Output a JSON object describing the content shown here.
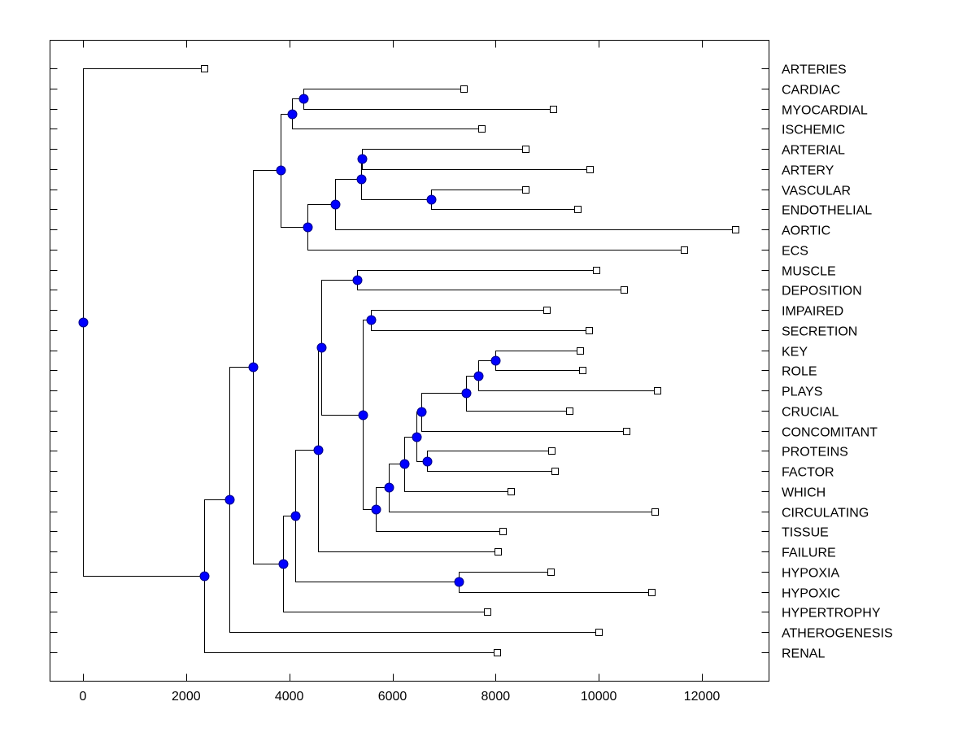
{
  "chart_data": {
    "type": "dendrogram",
    "title": "",
    "xlabel": "",
    "ylabel": "",
    "xlim": [
      -650,
      13300
    ],
    "xticks": [
      0,
      2000,
      4000,
      6000,
      8000,
      10000,
      12000
    ],
    "xtick_labels": [
      "0",
      "2000",
      "4000",
      "6000",
      "8000",
      "10000",
      "12000"
    ],
    "grid": false,
    "node_color": "#0000FF",
    "leaf_marker": "open-square",
    "leaves": [
      {
        "label": "ARTERIES",
        "value": 2350
      },
      {
        "label": "CARDIAC",
        "value": 7375
      },
      {
        "label": "MYOCARDIAL",
        "value": 9110
      },
      {
        "label": "ISCHEMIC",
        "value": 7720
      },
      {
        "label": "ARTERIAL",
        "value": 8575
      },
      {
        "label": "ARTERY",
        "value": 9830
      },
      {
        "label": "VASCULAR",
        "value": 8575
      },
      {
        "label": "ENDOTHELIAL",
        "value": 9580
      },
      {
        "label": "AORTIC",
        "value": 12640
      },
      {
        "label": "ECS",
        "value": 11660
      },
      {
        "label": "MUSCLE",
        "value": 9945
      },
      {
        "label": "DEPOSITION",
        "value": 10480
      },
      {
        "label": "IMPAIRED",
        "value": 8995
      },
      {
        "label": "SECRETION",
        "value": 9815
      },
      {
        "label": "KEY",
        "value": 9630
      },
      {
        "label": "ROLE",
        "value": 9675
      },
      {
        "label": "PLAYS",
        "value": 11125
      },
      {
        "label": "CRUCIAL",
        "value": 9425
      },
      {
        "label": "CONCOMITANT",
        "value": 10540
      },
      {
        "label": "PROTEINS",
        "value": 9090
      },
      {
        "label": "FACTOR",
        "value": 9140
      },
      {
        "label": "WHICH",
        "value": 8290
      },
      {
        "label": "CIRCULATING",
        "value": 11080
      },
      {
        "label": "TISSUE",
        "value": 8130
      },
      {
        "label": "FAILURE",
        "value": 8035
      },
      {
        "label": "HYPOXIA",
        "value": 9060
      },
      {
        "label": "HYPOXIC",
        "value": 11015
      },
      {
        "label": "HYPERTROPHY",
        "value": 7830
      },
      {
        "label": "ATHEROGENESIS",
        "value": 10005
      },
      {
        "label": "RENAL",
        "value": 8020
      }
    ],
    "nodes": [
      {
        "id": "n0",
        "value": 0,
        "children": [
          "L:ARTERIES",
          "n1"
        ]
      },
      {
        "id": "n1",
        "value": 2350,
        "children": [
          "n2",
          "L:RENAL"
        ]
      },
      {
        "id": "n2",
        "value": 2835,
        "children": [
          "n3",
          "L:ATHEROGENESIS"
        ]
      },
      {
        "id": "n3",
        "value": 3295,
        "children": [
          "n4",
          "n14"
        ]
      },
      {
        "id": "n4",
        "value": 3830,
        "children": [
          "n5",
          "n7"
        ]
      },
      {
        "id": "n5",
        "value": 4050,
        "children": [
          "n6",
          "L:ISCHEMIC"
        ]
      },
      {
        "id": "n6",
        "value": 4270,
        "children": [
          "L:CARDIAC",
          "L:MYOCARDIAL"
        ]
      },
      {
        "id": "n7",
        "value": 4350,
        "children": [
          "n8",
          "L:ECS"
        ]
      },
      {
        "id": "n8",
        "value": 4885,
        "children": [
          "n9",
          "L:AORTIC"
        ]
      },
      {
        "id": "n9",
        "value": 5390,
        "children": [
          "n10",
          "n11"
        ]
      },
      {
        "id": "n10",
        "value": 5405,
        "children": [
          "L:ARTERIAL",
          "L:ARTERY"
        ]
      },
      {
        "id": "n11",
        "value": 6745,
        "children": [
          "L:VASCULAR",
          "L:ENDOTHELIAL"
        ]
      },
      {
        "id": "n14",
        "value": 3875,
        "children": [
          "n15",
          "L:HYPERTROPHY"
        ]
      },
      {
        "id": "n15",
        "value": 4110,
        "children": [
          "n16",
          "n17"
        ]
      },
      {
        "id": "n17",
        "value": 7280,
        "children": [
          "L:HYPOXIA",
          "L:HYPOXIC"
        ]
      },
      {
        "id": "n16",
        "value": 4555,
        "children": [
          "n18",
          "L:FAILURE"
        ]
      },
      {
        "id": "n18",
        "value": 4620,
        "children": [
          "n19",
          "n20"
        ]
      },
      {
        "id": "n19",
        "value": 5310,
        "children": [
          "L:MUSCLE",
          "L:DEPOSITION"
        ]
      },
      {
        "id": "n20",
        "value": 5420,
        "children": [
          "n21",
          "n22"
        ]
      },
      {
        "id": "n21",
        "value": 5580,
        "children": [
          "L:IMPAIRED",
          "L:SECRETION"
        ]
      },
      {
        "id": "n22",
        "value": 5675,
        "children": [
          "n23",
          "L:TISSUE"
        ]
      },
      {
        "id": "n23",
        "value": 5925,
        "children": [
          "n24",
          "L:CIRCULATING"
        ]
      },
      {
        "id": "n24",
        "value": 6225,
        "children": [
          "n25",
          "L:WHICH"
        ]
      },
      {
        "id": "n25",
        "value": 6460,
        "children": [
          "n26",
          "n27"
        ]
      },
      {
        "id": "n26",
        "value": 6555,
        "children": [
          "n28",
          "L:CONCOMITANT"
        ]
      },
      {
        "id": "n27",
        "value": 6665,
        "children": [
          "L:PROTEINS",
          "L:FACTOR"
        ]
      },
      {
        "id": "n28",
        "value": 7425,
        "children": [
          "n29",
          "L:CRUCIAL"
        ]
      },
      {
        "id": "n29",
        "value": 7660,
        "children": [
          "n30",
          "L:PLAYS"
        ]
      },
      {
        "id": "n30",
        "value": 7990,
        "children": [
          "L:KEY",
          "L:ROLE"
        ]
      }
    ]
  }
}
